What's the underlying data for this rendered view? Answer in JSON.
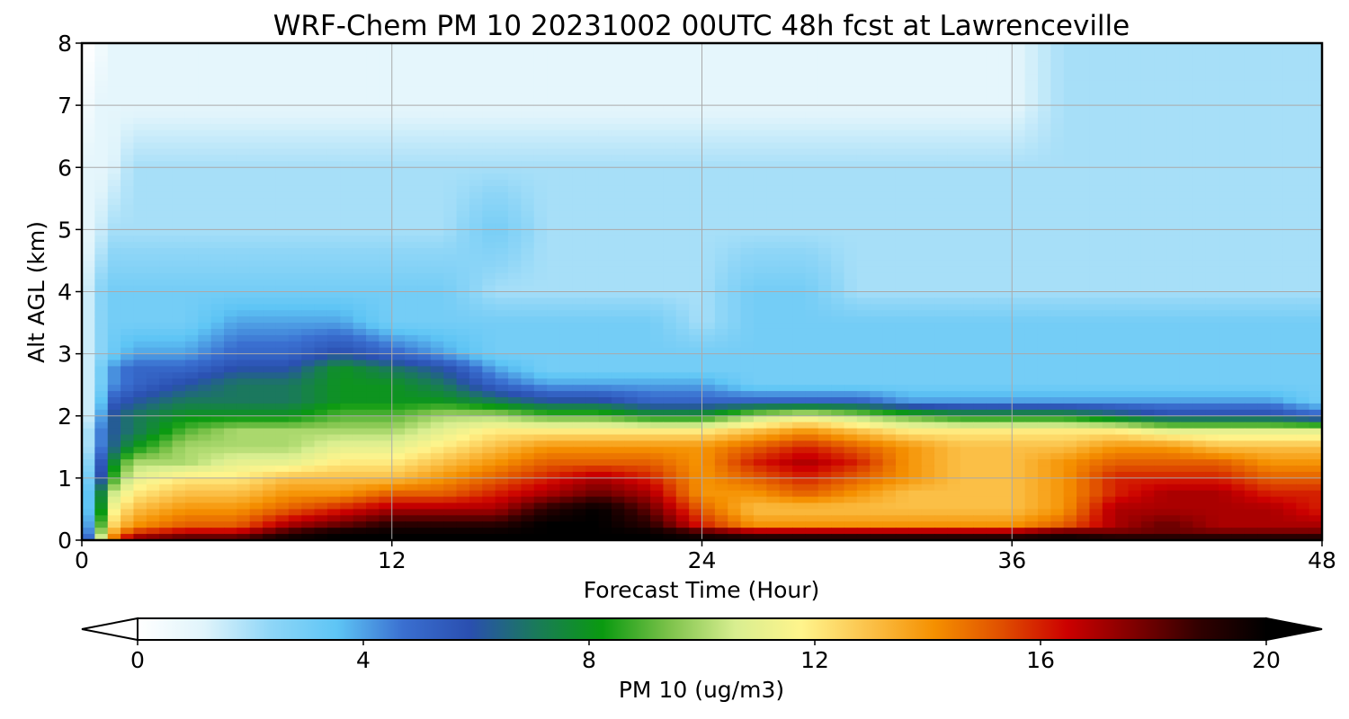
{
  "chart_data": {
    "type": "heatmap",
    "title": "WRF-Chem PM 10  20231002 00UTC 48h fcst at Lawrenceville",
    "xlabel": "Forecast Time (Hour)",
    "ylabel": "Alt AGL (km)",
    "xlim": [
      0,
      48
    ],
    "ylim": [
      0,
      8
    ],
    "x_ticks": [
      0,
      12,
      24,
      36,
      48
    ],
    "y_ticks": [
      0,
      1,
      2,
      3,
      4,
      5,
      6,
      7,
      8
    ],
    "grid": true,
    "colorbar": {
      "label": "PM 10  (ug/m3)",
      "min": 0,
      "max": 20,
      "ticks": [
        0,
        4,
        8,
        12,
        16,
        20
      ],
      "extend": "both",
      "colors": [
        "#ffffff",
        "#e0f4fb",
        "#8fd6f7",
        "#5ec5f5",
        "#3a6fd0",
        "#2a4fb0",
        "#1a7a5a",
        "#0a9a10",
        "#7cc24a",
        "#d8ee90",
        "#fff48c",
        "#fbc24a",
        "#f59000",
        "#e05000",
        "#cc0000",
        "#800000",
        "#300000",
        "#000000"
      ]
    },
    "x": [
      0,
      0.5,
      1,
      2,
      4,
      6,
      8,
      10,
      12,
      14,
      16,
      18,
      20,
      22,
      24,
      26,
      28,
      30,
      32,
      34,
      36,
      38,
      40,
      42,
      44,
      46,
      48
    ],
    "alt": [
      0,
      0.1,
      0.25,
      0.5,
      0.75,
      1,
      1.25,
      1.5,
      1.75,
      2,
      2.25,
      2.5,
      2.75,
      3,
      3.5,
      4,
      5,
      6,
      7,
      8
    ],
    "z": [
      [
        2,
        8,
        14,
        18,
        19,
        19,
        20,
        20,
        20,
        20,
        20,
        20,
        20,
        20,
        20,
        20,
        20,
        20,
        20,
        20,
        20,
        20,
        20,
        20,
        20,
        20,
        20
      ],
      [
        2,
        7,
        13,
        16,
        17,
        17,
        19,
        20,
        20,
        20,
        20,
        20,
        20,
        20,
        19,
        18,
        18,
        18,
        18,
        18,
        18,
        19,
        18,
        18,
        18,
        18,
        18
      ],
      [
        2,
        6,
        12,
        14,
        15,
        15,
        17,
        18,
        19,
        19,
        19,
        20,
        20,
        19,
        16,
        14,
        14,
        14,
        14,
        14,
        14,
        15,
        17,
        18,
        17,
        17,
        17
      ],
      [
        2,
        5,
        11,
        13,
        14,
        14,
        15,
        16,
        17,
        17,
        17,
        19,
        20,
        18,
        15,
        13,
        13,
        13,
        13,
        13,
        13,
        14,
        17,
        17,
        17,
        17,
        16
      ],
      [
        2,
        5,
        10,
        12,
        13,
        13,
        14,
        14,
        15,
        15,
        16,
        17,
        18,
        17,
        14,
        14,
        15,
        14,
        13,
        13,
        13,
        14,
        16,
        17,
        17,
        16,
        16
      ],
      [
        2,
        4,
        8,
        11,
        12,
        12,
        13,
        13,
        13,
        14,
        15,
        16,
        17,
        16,
        14,
        15,
        16,
        15,
        14,
        13,
        13,
        14,
        16,
        16,
        16,
        15,
        15
      ],
      [
        1,
        4,
        7,
        10,
        10,
        11,
        11,
        12,
        12,
        13,
        14,
        15,
        15,
        15,
        14,
        16,
        17,
        16,
        14,
        13,
        13,
        14,
        15,
        15,
        15,
        14,
        14
      ],
      [
        1,
        3,
        6,
        8,
        10,
        10,
        10,
        11,
        11,
        12,
        13,
        14,
        14,
        14,
        14,
        15,
        16,
        15,
        14,
        13,
        13,
        13,
        14,
        14,
        13,
        13,
        13
      ],
      [
        1,
        3,
        6,
        7,
        9,
        10,
        10,
        10,
        10,
        11,
        12,
        12,
        12,
        12,
        12,
        13,
        14,
        13,
        12,
        12,
        12,
        12,
        12,
        11,
        11,
        11,
        11
      ],
      [
        1,
        2,
        6,
        7,
        8,
        8,
        8,
        9,
        9,
        10,
        10,
        9,
        9,
        8,
        8,
        10,
        11,
        10,
        9,
        8,
        8,
        8,
        7,
        6,
        6,
        6,
        5
      ],
      [
        1,
        2,
        5,
        6,
        7,
        7,
        7,
        8,
        8,
        8,
        7,
        6,
        6,
        5,
        5,
        5,
        5,
        5,
        4,
        4,
        4,
        4,
        4,
        4,
        4,
        4,
        3
      ],
      [
        1,
        2,
        4,
        5,
        6,
        7,
        7,
        8,
        8,
        7,
        5,
        4,
        4,
        4,
        4,
        3,
        3,
        3,
        3,
        3,
        3,
        3,
        3,
        3,
        3,
        3,
        3
      ],
      [
        1,
        2,
        4,
        5,
        5,
        6,
        6,
        8,
        7,
        6,
        4,
        3,
        3,
        3,
        3,
        3,
        3,
        3,
        3,
        3,
        3,
        3,
        3,
        3,
        3,
        3,
        3
      ],
      [
        1,
        2,
        3,
        4,
        4,
        5,
        5,
        6,
        5,
        4,
        3,
        3,
        3,
        3,
        3,
        3,
        3,
        3,
        3,
        3,
        3,
        3,
        3,
        3,
        3,
        3,
        3
      ],
      [
        1,
        2,
        3,
        3,
        3,
        4,
        4,
        4,
        3,
        3,
        3,
        3,
        3,
        3,
        2,
        3,
        3,
        3,
        3,
        3,
        3,
        3,
        3,
        3,
        3,
        3,
        3
      ],
      [
        1,
        2,
        3,
        3,
        3,
        3,
        3,
        3,
        3,
        3,
        2,
        2,
        2,
        2,
        2,
        3,
        3,
        2,
        2,
        2,
        2,
        2,
        2,
        2,
        2,
        2,
        2
      ],
      [
        1,
        1,
        2,
        2,
        2,
        2,
        2,
        2,
        2,
        2,
        3,
        2,
        2,
        2,
        2,
        2,
        2,
        2,
        2,
        2,
        2,
        2,
        2,
        2,
        2,
        2,
        2
      ],
      [
        1,
        1,
        1,
        2,
        2,
        2,
        2,
        2,
        2,
        2,
        2,
        2,
        2,
        2,
        2,
        2,
        2,
        2,
        2,
        2,
        2,
        2,
        2,
        2,
        2,
        2,
        2
      ],
      [
        0,
        1,
        1,
        1,
        1,
        1,
        1,
        1,
        1,
        1,
        1,
        1,
        1,
        1,
        1,
        1,
        1,
        1,
        1,
        1,
        1,
        2,
        2,
        2,
        2,
        2,
        2
      ],
      [
        0,
        0,
        1,
        1,
        1,
        1,
        1,
        1,
        1,
        1,
        1,
        1,
        1,
        1,
        1,
        1,
        1,
        1,
        1,
        1,
        1,
        2,
        2,
        2,
        2,
        2,
        2
      ]
    ]
  }
}
